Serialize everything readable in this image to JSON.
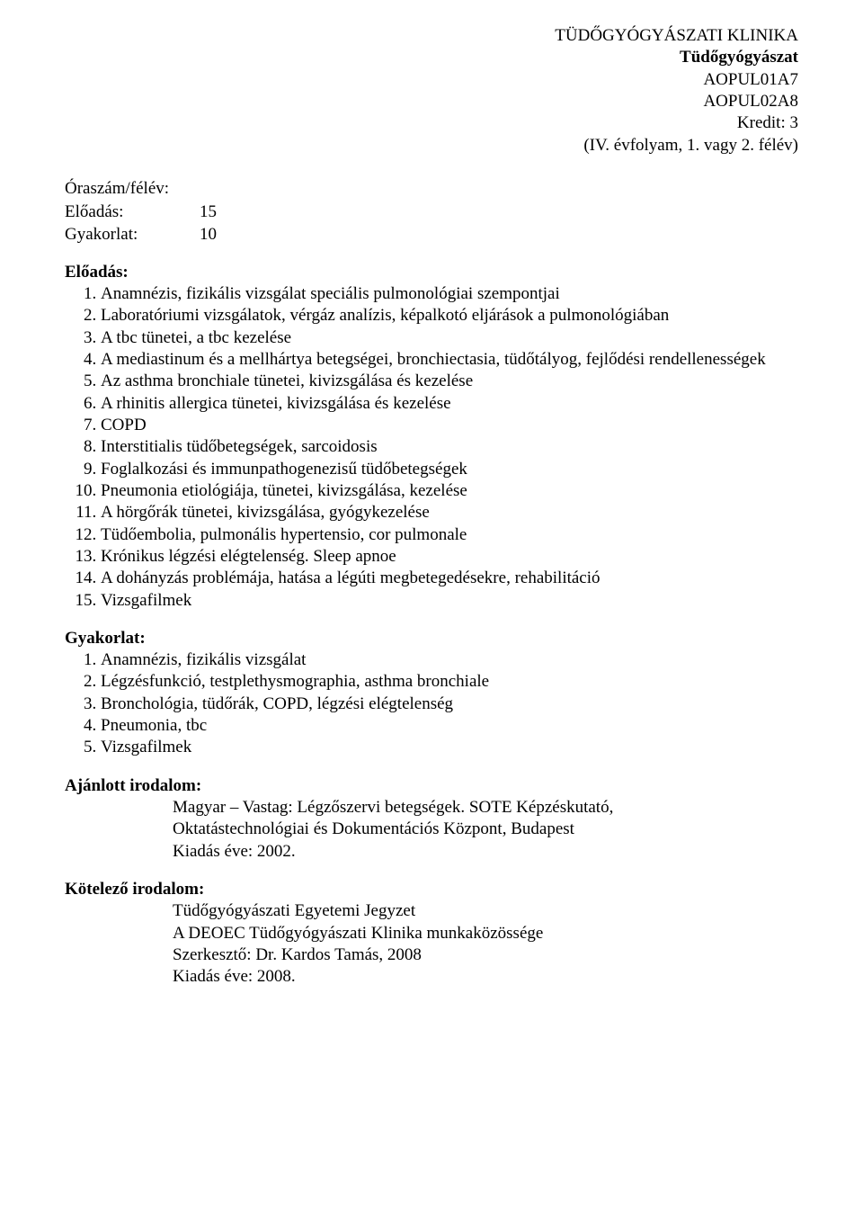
{
  "header": {
    "dept": "TÜDŐGYÓGYÁSZATI KLINIKA",
    "subject": "Tüdőgyógyászat",
    "code1": "AOPUL01A7",
    "code2": "AOPUL02A8",
    "credit": "Kredit: 3",
    "term": "(IV. évfolyam, 1. vagy 2. félév)"
  },
  "hours": {
    "title": "Óraszám/félév:",
    "lecture_label": "Előadás:",
    "lecture_count": "15",
    "practical_label": "Gyakorlat:",
    "practical_count": "10"
  },
  "lectures": {
    "heading": "Előadás:",
    "items": [
      "Anamnézis, fizikális vizsgálat speciális pulmonológiai szempontjai",
      "Laboratóriumi vizsgálatok, vérgáz analízis, képalkotó eljárások a pulmonológiában",
      "A tbc tünetei, a tbc kezelése",
      "A mediastinum és a mellhártya betegségei, bronchiectasia, tüdőtályog, fejlődési rendellenességek",
      "Az asthma bronchiale tünetei, kivizsgálása és kezelése",
      "A rhinitis allergica tünetei, kivizsgálása és kezelése",
      "COPD",
      "Interstitialis tüdőbetegségek, sarcoidosis",
      "Foglalkozási és immunpathogenezisű tüdőbetegségek",
      "Pneumonia etiológiája, tünetei, kivizsgálása, kezelése",
      "A hörgőrák tünetei, kivizsgálása, gyógykezelése",
      "Tüdőembolia, pulmonális hypertensio, cor pulmonale",
      "Krónikus légzési elégtelenség. Sleep apnoe",
      "A dohányzás problémája, hatása a légúti megbetegedésekre, rehabilitáció",
      "Vizsgafilmek"
    ]
  },
  "practicals": {
    "heading": "Gyakorlat:",
    "items": [
      "Anamnézis, fizikális vizsgálat",
      "Légzésfunkció, testplethysmographia, asthma bronchiale",
      "Bronchológia, tüdőrák, COPD, légzési elégtelenség",
      "Pneumonia, tbc",
      "Vizsgafilmek"
    ]
  },
  "recommended": {
    "heading": "Ajánlott irodalom:",
    "line1": "Magyar – Vastag: Légzőszervi betegségek. SOTE Képzéskutató,",
    "line2": "Oktatástechnológiai és Dokumentációs Központ, Budapest",
    "line3": "Kiadás éve: 2002."
  },
  "mandatory": {
    "heading": "Kötelező irodalom:",
    "line1": "Tüdőgyógyászati Egyetemi Jegyzet",
    "line2": "A DEOEC Tüdőgyógyászati Klinika munkaközössége",
    "line3": "Szerkesztő: Dr. Kardos Tamás, 2008",
    "line4": "Kiadás éve: 2008."
  }
}
